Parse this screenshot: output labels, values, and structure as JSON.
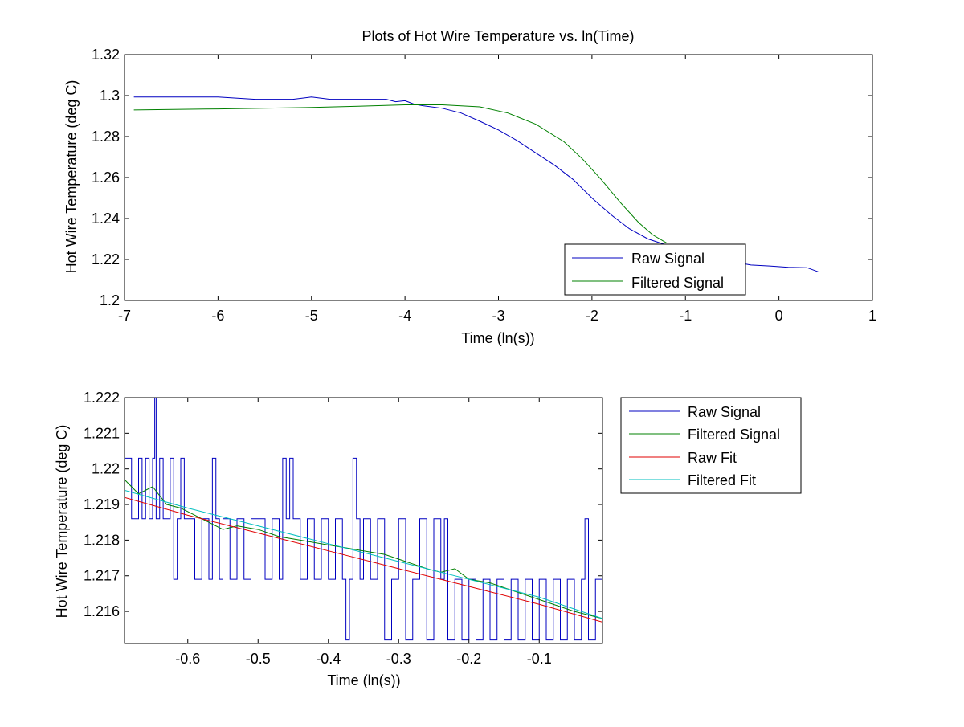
{
  "colors": {
    "raw": "#0000c0",
    "filtered": "#008000",
    "raw_fit": "#e00000",
    "filtered_fit": "#00bfbf",
    "axis": "#000000",
    "background": "#ffffff"
  },
  "chart_data": [
    {
      "type": "line",
      "title": "Plots of Hot Wire Temperature vs. ln(Time)",
      "xlabel": "Time (ln(s))",
      "ylabel": "Hot Wire Temperature (deg C)",
      "xlim": [
        -7,
        1
      ],
      "ylim": [
        1.2,
        1.32
      ],
      "xticks": [
        -7,
        -6,
        -5,
        -4,
        -3,
        -2,
        -1,
        0,
        1
      ],
      "xtick_labels": [
        "-7",
        "-6",
        "-5",
        "-4",
        "-3",
        "-2",
        "-1",
        "0",
        "1"
      ],
      "yticks": [
        1.2,
        1.22,
        1.24,
        1.26,
        1.28,
        1.3,
        1.32
      ],
      "ytick_labels": [
        "1.2",
        "1.22",
        "1.24",
        "1.26",
        "1.28",
        "1.3",
        "1.32"
      ],
      "grid": false,
      "legend_position": "bottom-right",
      "series": [
        {
          "name": "Raw Signal",
          "x": [
            -6.9,
            -6.0,
            -5.6,
            -5.2,
            -5.0,
            -4.8,
            -4.5,
            -4.2,
            -4.1,
            -4.0,
            -3.9,
            -3.8,
            -3.6,
            -3.4,
            -3.2,
            -3.0,
            -2.8,
            -2.6,
            -2.4,
            -2.2,
            -2.0,
            -1.8,
            -1.6,
            -1.4,
            -1.2,
            -1.0,
            -0.8,
            -0.5,
            -0.3,
            -0.1,
            0.1,
            0.3,
            0.42
          ],
          "y": [
            1.2993,
            1.2993,
            1.2982,
            1.2982,
            1.2993,
            1.2982,
            1.2982,
            1.2982,
            1.297,
            1.2975,
            1.2958,
            1.295,
            1.2938,
            1.2915,
            1.2875,
            1.2832,
            1.278,
            1.272,
            1.266,
            1.259,
            1.25,
            1.242,
            1.235,
            1.23,
            1.227,
            1.2243,
            1.2212,
            1.2189,
            1.2173,
            1.2168,
            1.2162,
            1.216,
            1.214
          ]
        },
        {
          "name": "Filtered Signal",
          "x": [
            -6.9,
            -6.0,
            -5.0,
            -4.5,
            -4.0,
            -3.6,
            -3.2,
            -2.9,
            -2.6,
            -2.3,
            -2.1,
            -1.9,
            -1.7,
            -1.5,
            -1.35,
            -1.2
          ],
          "y": [
            1.293,
            1.2935,
            1.2942,
            1.2948,
            1.2955,
            1.2955,
            1.2945,
            1.2915,
            1.286,
            1.2775,
            1.269,
            1.259,
            1.248,
            1.238,
            1.232,
            1.228
          ]
        }
      ]
    },
    {
      "type": "line",
      "title": "",
      "xlabel": "Time (ln(s))",
      "ylabel": "Hot Wire Temperature (deg C)",
      "xlim": [
        -0.69,
        -0.01
      ],
      "ylim": [
        1.2151,
        1.222
      ],
      "xticks": [
        -0.6,
        -0.5,
        -0.4,
        -0.3,
        -0.2,
        -0.1
      ],
      "xtick_labels": [
        "-0.6",
        "-0.5",
        "-0.4",
        "-0.3",
        "-0.2",
        "-0.1"
      ],
      "yticks": [
        1.216,
        1.217,
        1.218,
        1.219,
        1.22,
        1.221,
        1.222
      ],
      "ytick_labels": [
        "1.216",
        "1.217",
        "1.218",
        "1.219",
        "1.22",
        "1.221",
        "1.222"
      ],
      "grid": false,
      "legend_position": "outside-right",
      "series": [
        {
          "name": "Raw Signal",
          "x": [
            -0.69,
            -0.68,
            -0.67,
            -0.665,
            -0.66,
            -0.655,
            -0.65,
            -0.647,
            -0.645,
            -0.64,
            -0.635,
            -0.63,
            -0.625,
            -0.62,
            -0.615,
            -0.61,
            -0.605,
            -0.6,
            -0.59,
            -0.58,
            -0.57,
            -0.565,
            -0.56,
            -0.555,
            -0.55,
            -0.54,
            -0.53,
            -0.52,
            -0.51,
            -0.5,
            -0.49,
            -0.48,
            -0.47,
            -0.465,
            -0.46,
            -0.455,
            -0.45,
            -0.44,
            -0.43,
            -0.42,
            -0.41,
            -0.4,
            -0.39,
            -0.38,
            -0.375,
            -0.37,
            -0.365,
            -0.36,
            -0.355,
            -0.35,
            -0.34,
            -0.33,
            -0.32,
            -0.31,
            -0.3,
            -0.29,
            -0.28,
            -0.27,
            -0.26,
            -0.25,
            -0.24,
            -0.235,
            -0.23,
            -0.22,
            -0.21,
            -0.2,
            -0.19,
            -0.18,
            -0.17,
            -0.16,
            -0.15,
            -0.14,
            -0.13,
            -0.12,
            -0.11,
            -0.1,
            -0.09,
            -0.08,
            -0.07,
            -0.06,
            -0.05,
            -0.04,
            -0.035,
            -0.03,
            -0.02,
            -0.01
          ],
          "y": [
            1.2203,
            1.2186,
            1.2203,
            1.2186,
            1.2203,
            1.2186,
            1.2203,
            1.222,
            1.2186,
            1.2203,
            1.2186,
            1.2186,
            1.2203,
            1.2169,
            1.2186,
            1.2203,
            1.2186,
            1.2186,
            1.2169,
            1.2186,
            1.2169,
            1.2203,
            1.2186,
            1.2169,
            1.2186,
            1.2169,
            1.2186,
            1.2169,
            1.2186,
            1.2186,
            1.2169,
            1.2186,
            1.2169,
            1.2203,
            1.2186,
            1.2203,
            1.2186,
            1.2169,
            1.2186,
            1.2169,
            1.2186,
            1.2169,
            1.2186,
            1.2169,
            1.2152,
            1.2169,
            1.2203,
            1.2186,
            1.2169,
            1.2186,
            1.2169,
            1.2186,
            1.2152,
            1.2169,
            1.2186,
            1.2152,
            1.2169,
            1.2186,
            1.2152,
            1.2186,
            1.2169,
            1.2186,
            1.2152,
            1.2169,
            1.2152,
            1.2169,
            1.2152,
            1.2169,
            1.2152,
            1.2169,
            1.2152,
            1.2169,
            1.2152,
            1.2169,
            1.2152,
            1.2169,
            1.2152,
            1.2169,
            1.2152,
            1.2169,
            1.2152,
            1.2169,
            1.2186,
            1.2152,
            1.2169,
            1.2152
          ]
        },
        {
          "name": "Filtered Signal",
          "x": [
            -0.69,
            -0.67,
            -0.65,
            -0.63,
            -0.61,
            -0.59,
            -0.57,
            -0.55,
            -0.53,
            -0.5,
            -0.47,
            -0.44,
            -0.41,
            -0.38,
            -0.35,
            -0.32,
            -0.29,
            -0.26,
            -0.24,
            -0.22,
            -0.2,
            -0.17,
            -0.14,
            -0.11,
            -0.08,
            -0.05,
            -0.03,
            -0.01
          ],
          "y": [
            1.2197,
            1.2193,
            1.2195,
            1.219,
            1.2189,
            1.2187,
            1.2185,
            1.2183,
            1.2184,
            1.2183,
            1.2181,
            1.218,
            1.2179,
            1.2178,
            1.2177,
            1.2176,
            1.2174,
            1.2172,
            1.2171,
            1.2172,
            1.2169,
            1.2168,
            1.2166,
            1.2164,
            1.2162,
            1.216,
            1.2159,
            1.2158
          ]
        },
        {
          "name": "Raw Fit",
          "x": [
            -0.69,
            -0.6,
            -0.5,
            -0.4,
            -0.3,
            -0.2,
            -0.1,
            -0.01
          ],
          "y": [
            1.2192,
            1.2187,
            1.2182,
            1.2177,
            1.2172,
            1.2167,
            1.2162,
            1.2157
          ]
        },
        {
          "name": "Filtered Fit",
          "x": [
            -0.69,
            -0.6,
            -0.5,
            -0.4,
            -0.3,
            -0.2,
            -0.1,
            -0.01
          ],
          "y": [
            1.2194,
            1.2189,
            1.2184,
            1.2179,
            1.2174,
            1.2169,
            1.2164,
            1.2158
          ]
        }
      ]
    }
  ]
}
